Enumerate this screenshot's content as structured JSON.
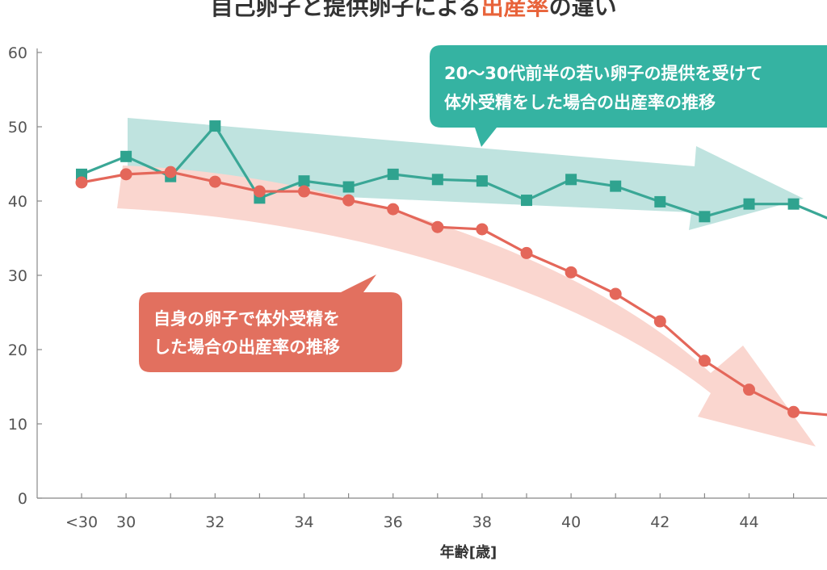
{
  "title": {
    "part1": "自己卵子と提供卵子による",
    "part2": "出産率",
    "part3": "の違い"
  },
  "colors": {
    "donor": "#3aa796",
    "donor_marker": "#2fa38f",
    "donor_band": "#bfe3df",
    "donor_callout": "#35b3a2",
    "own": "#e4675a",
    "own_band": "#fad6cf",
    "own_callout": "#e2705f",
    "title_accent": "#e8633a",
    "axis": "#888888",
    "text": "#333333"
  },
  "chart_data": {
    "type": "line",
    "title": "自己卵子と提供卵子による出産率の違い",
    "xlabel": "年齢[歳]",
    "ylabel": "",
    "ylim": [
      0,
      60
    ],
    "yticks": [
      0,
      10,
      20,
      30,
      40,
      50,
      60
    ],
    "xlim": [
      29,
      47
    ],
    "x": [
      29,
      30,
      31,
      32,
      33,
      34,
      35,
      36,
      37,
      38,
      39,
      40,
      41,
      42,
      43,
      44,
      45,
      46
    ],
    "xtick_positions": [
      29,
      30,
      32,
      34,
      36,
      38,
      40,
      42,
      44,
      46
    ],
    "xtick_labels": [
      "<30",
      "30",
      "32",
      "34",
      "36",
      "38",
      "40",
      "42",
      "44",
      ">"
    ],
    "series": [
      {
        "name": "提供卵子",
        "key": "donor",
        "marker": "square",
        "values": [
          43.6,
          46.0,
          43.3,
          50.1,
          40.4,
          42.7,
          41.9,
          43.6,
          42.9,
          42.7,
          40.1,
          42.9,
          42.0,
          39.9,
          37.9,
          39.6,
          39.6,
          37.1
        ]
      },
      {
        "name": "自己卵子",
        "key": "own",
        "marker": "circle",
        "values": [
          42.5,
          43.6,
          43.9,
          42.6,
          41.3,
          41.3,
          40.1,
          38.9,
          36.5,
          36.2,
          33.0,
          30.4,
          27.5,
          23.8,
          18.5,
          14.6,
          11.6,
          11.1
        ]
      }
    ],
    "annotations": [
      {
        "key": "donor",
        "lines": [
          "20〜30代前半の若い卵子の提供を受けて",
          "体外受精をした場合の出産率の推移"
        ]
      },
      {
        "key": "own",
        "lines": [
          "自身の卵子で体外受精を",
          "した場合の出産率の推移"
        ]
      }
    ]
  }
}
